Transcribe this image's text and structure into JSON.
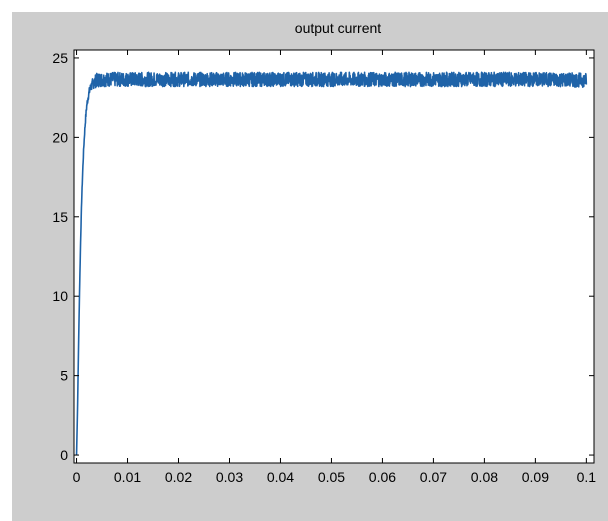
{
  "chart_data": {
    "type": "line",
    "title": "output current",
    "xlabel": "",
    "ylabel": "",
    "xlim": [
      -0.0005,
      0.1015
    ],
    "ylim": [
      -0.5,
      25.5
    ],
    "xticks": [
      0,
      0.01,
      0.02,
      0.03,
      0.04,
      0.05,
      0.06,
      0.07,
      0.08,
      0.09,
      0.1
    ],
    "xtick_labels": [
      "0",
      "0.01",
      "0.02",
      "0.03",
      "0.04",
      "0.05",
      "0.06",
      "0.07",
      "0.08",
      "0.09",
      "0.1"
    ],
    "yticks": [
      0,
      5,
      10,
      15,
      20,
      25
    ],
    "ytick_labels": [
      "0",
      "5",
      "10",
      "15",
      "20",
      "25"
    ],
    "grid": false,
    "legend": "none",
    "colors": {
      "line": "#1f63a8",
      "figure_background": "#cdcdcd",
      "axes_background": "#ffffff"
    },
    "series": [
      {
        "x": [
          0,
          0.0002,
          0.0004,
          0.0006,
          0.0008,
          0.001,
          0.0012,
          0.0014,
          0.0016,
          0.0018,
          0.002,
          0.0023,
          0.0026,
          0.003,
          0.0035,
          0.004,
          0.005,
          0.006,
          0.008,
          0.01,
          0.015,
          0.02,
          0.03,
          0.04,
          0.05,
          0.06,
          0.07,
          0.08,
          0.09,
          0.1
        ],
        "y": [
          0,
          3,
          7,
          10.5,
          13.5,
          16,
          17.8,
          19.3,
          20.4,
          21.3,
          22,
          22.6,
          23,
          23.3,
          23.5,
          23.6,
          23.65,
          23.65,
          23.65,
          23.65,
          23.65,
          23.65,
          23.65,
          23.65,
          23.65,
          23.65,
          23.65,
          23.65,
          23.65,
          23.6
        ],
        "noise_band": 0.45
      }
    ]
  }
}
